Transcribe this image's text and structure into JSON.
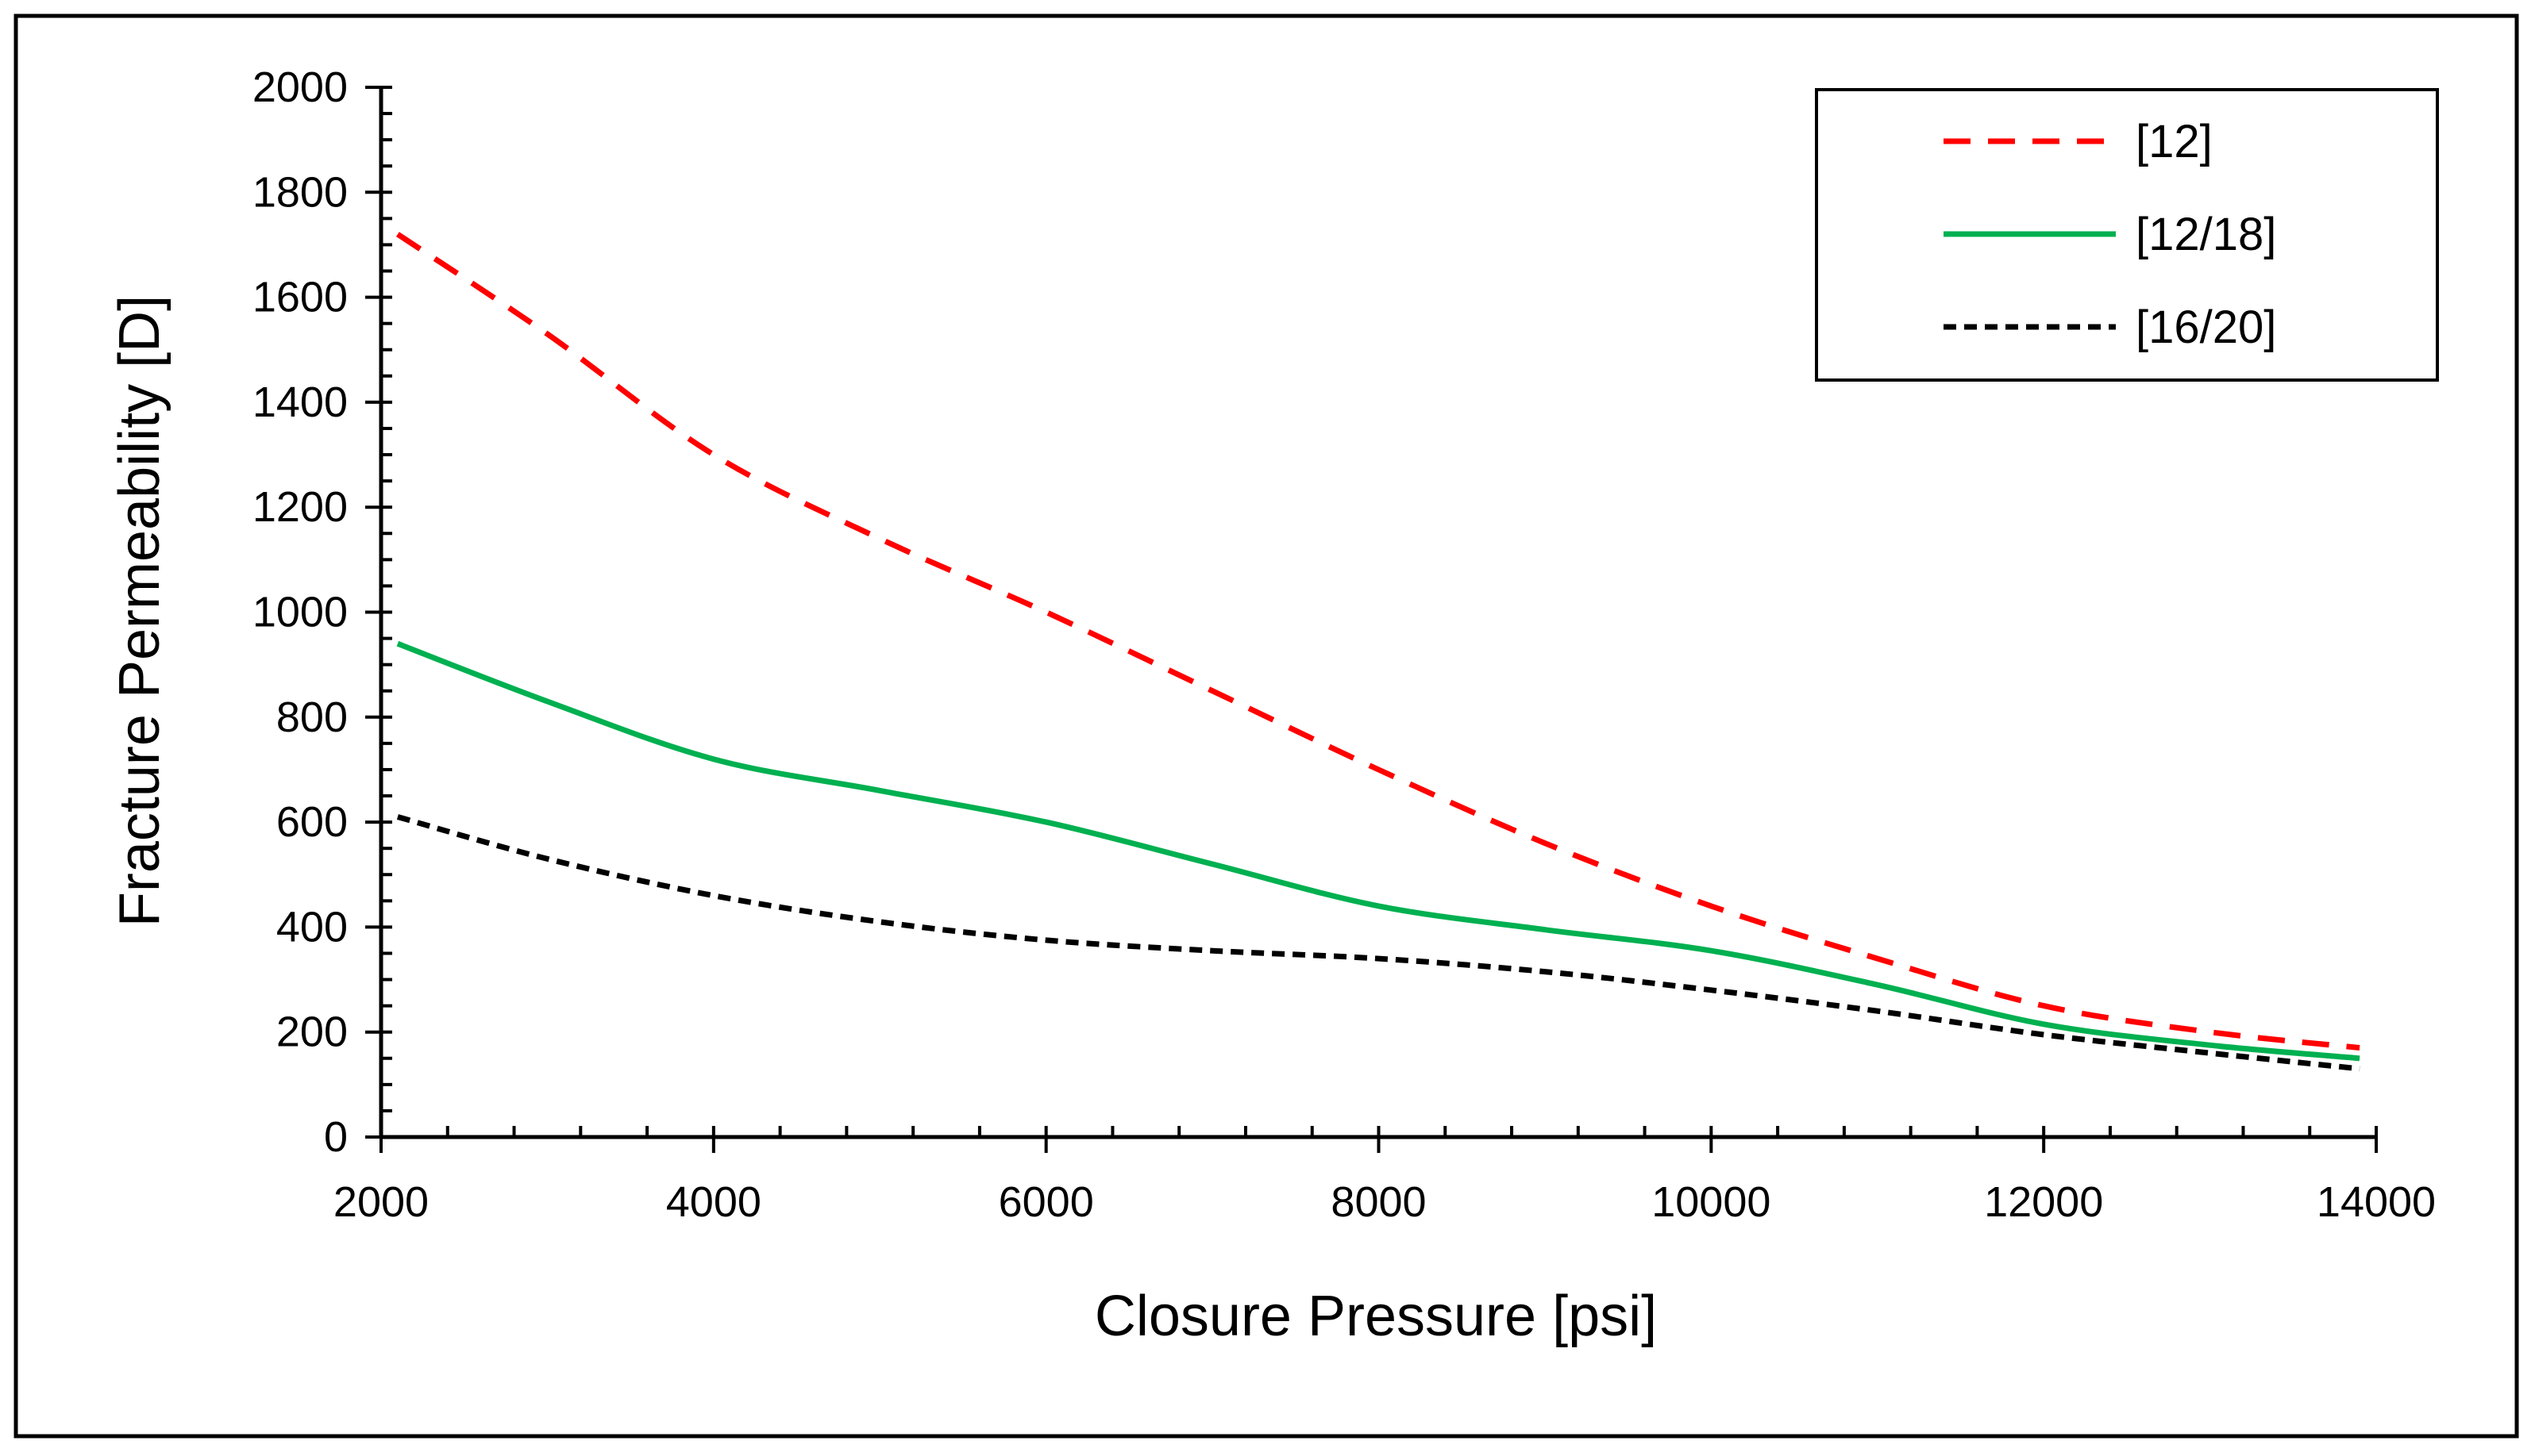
{
  "chart_data": {
    "type": "line",
    "title": "",
    "xlabel": "Closure Pressure [psi]",
    "ylabel": "Fracture Permeability [D]",
    "xlim": [
      2000,
      14000
    ],
    "ylim": [
      0,
      2000
    ],
    "x_ticks": [
      2000,
      4000,
      6000,
      8000,
      10000,
      12000,
      14000
    ],
    "y_ticks": [
      0,
      200,
      400,
      600,
      800,
      1000,
      1200,
      1400,
      1600,
      1800,
      2000
    ],
    "x_minor_step": 400,
    "y_minor_step": 50,
    "grid": false,
    "legend_position": "top-right",
    "series": [
      {
        "name": "[12]",
        "color": "#ff0000",
        "style": "dashed",
        "x": [
          2100,
          3000,
          4000,
          5000,
          6000,
          7000,
          8000,
          9000,
          10000,
          11000,
          12000,
          13000,
          13900
        ],
        "y": [
          1720,
          1530,
          1300,
          1140,
          1000,
          850,
          700,
          560,
          440,
          340,
          250,
          200,
          170
        ]
      },
      {
        "name": "[12/18]",
        "color": "#00b050",
        "style": "solid",
        "x": [
          2100,
          3000,
          4000,
          5000,
          6000,
          7000,
          8000,
          9000,
          10000,
          11000,
          12000,
          13000,
          13900
        ],
        "y": [
          940,
          830,
          720,
          660,
          600,
          520,
          440,
          395,
          355,
          290,
          215,
          175,
          150
        ]
      },
      {
        "name": "[16/20]",
        "color": "#000000",
        "style": "dotted",
        "x": [
          2100,
          3000,
          4000,
          5000,
          6000,
          7000,
          8000,
          9000,
          10000,
          11000,
          12000,
          13000,
          13900
        ],
        "y": [
          610,
          530,
          460,
          410,
          375,
          355,
          340,
          315,
          280,
          240,
          195,
          160,
          130
        ]
      }
    ]
  }
}
